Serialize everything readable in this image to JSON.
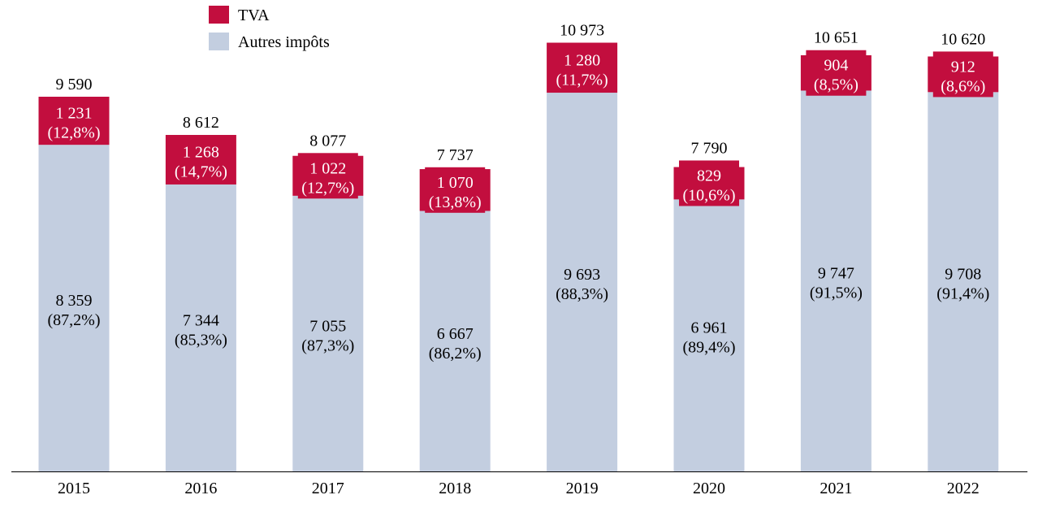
{
  "chart_data": {
    "type": "bar",
    "stacked": true,
    "categories": [
      "2015",
      "2016",
      "2017",
      "2018",
      "2019",
      "2020",
      "2021",
      "2022"
    ],
    "series": [
      {
        "name": "Autres impôts",
        "color": "#C3CEE0",
        "values": [
          8359,
          7344,
          7055,
          6667,
          9693,
          6961,
          9747,
          9708
        ],
        "value_labels": [
          "8 359",
          "7 344",
          "7 055",
          "6 667",
          "9 693",
          "6 961",
          "9 747",
          "9 708"
        ],
        "pct_labels": [
          "(87,2%)",
          "(85,3%)",
          "(87,3%)",
          "(86,2%)",
          "(88,3%)",
          "(89,4%)",
          "(91,5%)",
          "(91,4%)"
        ]
      },
      {
        "name": "TVA",
        "color": "#C20E3E",
        "values": [
          1231,
          1268,
          1022,
          1070,
          1280,
          829,
          904,
          912
        ],
        "value_labels": [
          "1 231",
          "1 268",
          "1 022",
          "1 070",
          "1 280",
          "829",
          "904",
          "912"
        ],
        "pct_labels": [
          "(12,8%)",
          "(14,7%)",
          "(12,7%)",
          "(13,8%)",
          "(11,7%)",
          "(10,6%)",
          "(8,5%)",
          "(8,6%)"
        ]
      }
    ],
    "totals": [
      9590,
      8612,
      8077,
      7737,
      10973,
      7790,
      10651,
      10620
    ],
    "total_labels": [
      "9 590",
      "8 612",
      "8 077",
      "7 737",
      "10 973",
      "7 790",
      "10 651",
      "10 620"
    ],
    "legend": {
      "placement": "top-center",
      "items": [
        "TVA",
        "Autres impôts"
      ]
    },
    "grid": false,
    "ylim": [
      0,
      12000
    ]
  }
}
